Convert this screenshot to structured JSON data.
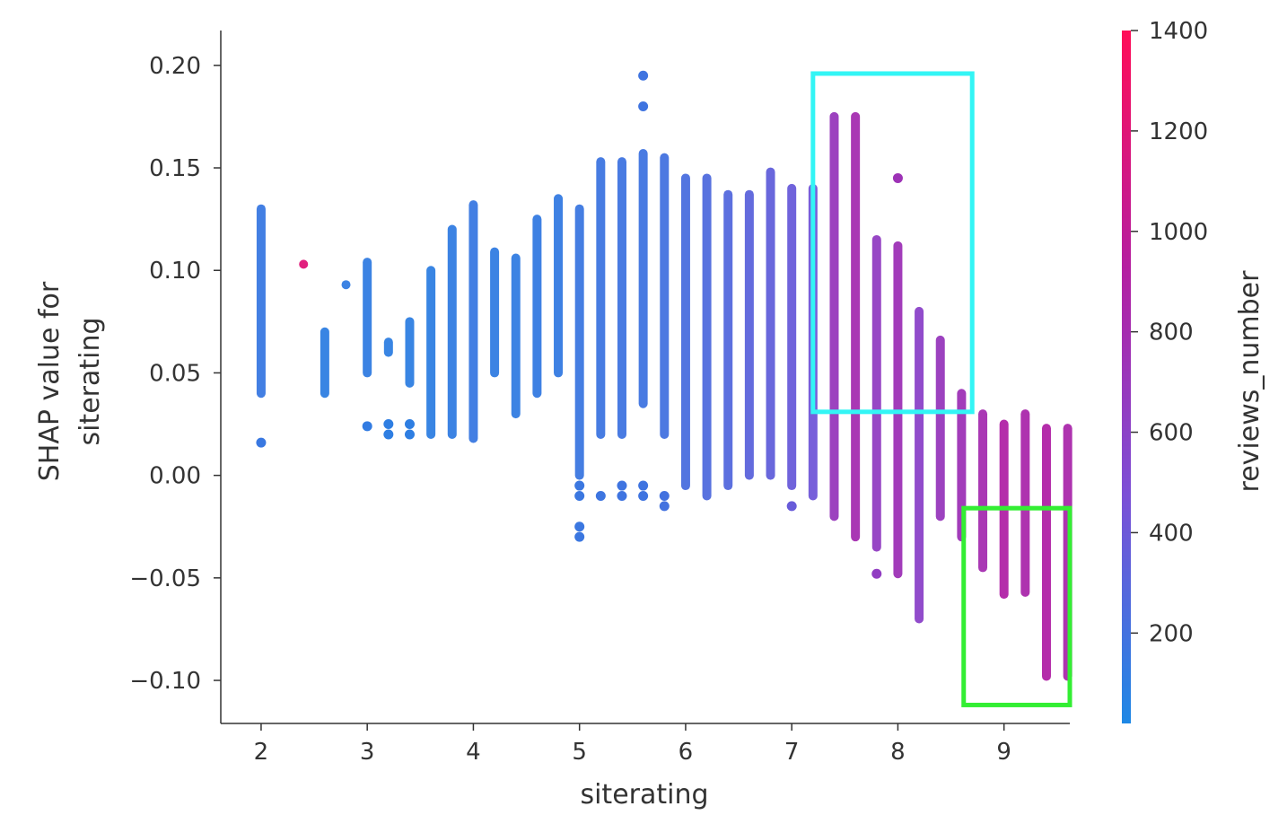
{
  "chart_data": {
    "type": "scatter",
    "title": "",
    "xlabel": "siterating",
    "ylabel_lines": [
      "SHAP value for",
      "siterating"
    ],
    "xlim": [
      1.62,
      9.62
    ],
    "ylim": [
      -0.121,
      0.217
    ],
    "x_ticks": [
      2,
      3,
      4,
      5,
      6,
      7,
      8,
      9
    ],
    "x_tick_labels": [
      "2",
      "3",
      "4",
      "5",
      "6",
      "7",
      "8",
      "9"
    ],
    "y_ticks": [
      0.2,
      0.15,
      0.1,
      0.05,
      0.0,
      -0.05,
      -0.1
    ],
    "y_tick_labels": [
      "0.20",
      "0.15",
      "0.10",
      "0.05",
      "0.00",
      "−0.05",
      "−0.10"
    ],
    "grid": false,
    "colorbar": {
      "label": "reviews_number",
      "range": [
        20,
        1400
      ],
      "ticks": [
        1400,
        1200,
        1000,
        800,
        600,
        400,
        200
      ],
      "tick_labels": [
        "1400",
        "1200",
        "1000",
        "800",
        "600",
        "400",
        "200"
      ],
      "colors": [
        "#1e88e5",
        "#7c4fd6",
        "#b51ea0",
        "#ff0d57"
      ]
    },
    "columns": [
      {
        "x": 2.0,
        "y_min": 0.04,
        "y_max": 0.13,
        "outliers": [
          0.016
        ],
        "reviews": 150
      },
      {
        "x": 2.4,
        "y_min": 0.103,
        "y_max": 0.103,
        "outliers": [],
        "reviews": 1200
      },
      {
        "x": 2.6,
        "y_min": 0.04,
        "y_max": 0.07,
        "outliers": [],
        "reviews": 100
      },
      {
        "x": 2.8,
        "y_min": 0.093,
        "y_max": 0.093,
        "outliers": [],
        "reviews": 120
      },
      {
        "x": 3.0,
        "y_min": 0.05,
        "y_max": 0.104,
        "outliers": [
          0.024
        ],
        "reviews": 120
      },
      {
        "x": 3.2,
        "y_min": 0.06,
        "y_max": 0.065,
        "outliers": [
          0.02,
          0.025
        ],
        "reviews": 100
      },
      {
        "x": 3.4,
        "y_min": 0.045,
        "y_max": 0.075,
        "outliers": [
          0.02,
          0.025
        ],
        "reviews": 100
      },
      {
        "x": 3.6,
        "y_min": 0.02,
        "y_max": 0.1,
        "outliers": [],
        "reviews": 100
      },
      {
        "x": 3.8,
        "y_min": 0.02,
        "y_max": 0.12,
        "outliers": [],
        "reviews": 120
      },
      {
        "x": 4.0,
        "y_min": 0.018,
        "y_max": 0.132,
        "outliers": [],
        "reviews": 150
      },
      {
        "x": 4.2,
        "y_min": 0.05,
        "y_max": 0.109,
        "outliers": [],
        "reviews": 120
      },
      {
        "x": 4.4,
        "y_min": 0.03,
        "y_max": 0.106,
        "outliers": [],
        "reviews": 120
      },
      {
        "x": 4.6,
        "y_min": 0.04,
        "y_max": 0.125,
        "outliers": [],
        "reviews": 130
      },
      {
        "x": 4.8,
        "y_min": 0.05,
        "y_max": 0.135,
        "outliers": [],
        "reviews": 130
      },
      {
        "x": 5.0,
        "y_min": 0.0,
        "y_max": 0.13,
        "outliers": [
          -0.025,
          -0.03,
          -0.01,
          -0.005
        ],
        "reviews": 160
      },
      {
        "x": 5.2,
        "y_min": 0.02,
        "y_max": 0.153,
        "outliers": [
          -0.01
        ],
        "reviews": 170
      },
      {
        "x": 5.4,
        "y_min": 0.02,
        "y_max": 0.153,
        "outliers": [
          -0.005,
          -0.01
        ],
        "reviews": 180
      },
      {
        "x": 5.6,
        "y_min": 0.035,
        "y_max": 0.157,
        "outliers": [
          0.195,
          0.18,
          -0.005,
          -0.01
        ],
        "reviews": 180
      },
      {
        "x": 5.8,
        "y_min": 0.02,
        "y_max": 0.155,
        "outliers": [
          -0.01,
          -0.015
        ],
        "reviews": 200
      },
      {
        "x": 6.0,
        "y_min": -0.005,
        "y_max": 0.145,
        "outliers": [],
        "reviews": 230
      },
      {
        "x": 6.2,
        "y_min": -0.01,
        "y_max": 0.145,
        "outliers": [],
        "reviews": 260
      },
      {
        "x": 6.4,
        "y_min": -0.005,
        "y_max": 0.137,
        "outliers": [],
        "reviews": 280
      },
      {
        "x": 6.6,
        "y_min": 0.0,
        "y_max": 0.137,
        "outliers": [],
        "reviews": 320
      },
      {
        "x": 6.8,
        "y_min": 0.0,
        "y_max": 0.148,
        "outliers": [],
        "reviews": 350
      },
      {
        "x": 7.0,
        "y_min": -0.005,
        "y_max": 0.14,
        "outliers": [
          -0.015
        ],
        "reviews": 380
      },
      {
        "x": 7.2,
        "y_min": -0.01,
        "y_max": 0.14,
        "outliers": [],
        "reviews": 420
      },
      {
        "x": 7.4,
        "y_min": -0.02,
        "y_max": 0.175,
        "outliers": [],
        "reviews": 700
      },
      {
        "x": 7.6,
        "y_min": -0.03,
        "y_max": 0.175,
        "outliers": [],
        "reviews": 800
      },
      {
        "x": 7.8,
        "y_min": -0.035,
        "y_max": 0.115,
        "outliers": [
          -0.048
        ],
        "reviews": 650
      },
      {
        "x": 8.0,
        "y_min": -0.048,
        "y_max": 0.112,
        "outliers": [
          0.145
        ],
        "reviews": 750
      },
      {
        "x": 8.2,
        "y_min": -0.07,
        "y_max": 0.08,
        "outliers": [],
        "reviews": 600
      },
      {
        "x": 8.4,
        "y_min": -0.02,
        "y_max": 0.066,
        "outliers": [],
        "reviews": 700
      },
      {
        "x": 8.6,
        "y_min": -0.03,
        "y_max": 0.04,
        "outliers": [],
        "reviews": 750
      },
      {
        "x": 8.8,
        "y_min": -0.045,
        "y_max": 0.03,
        "outliers": [],
        "reviews": 800
      },
      {
        "x": 9.0,
        "y_min": -0.058,
        "y_max": 0.025,
        "outliers": [],
        "reviews": 900
      },
      {
        "x": 9.2,
        "y_min": -0.057,
        "y_max": 0.03,
        "outliers": [],
        "reviews": 850
      },
      {
        "x": 9.4,
        "y_min": -0.098,
        "y_max": 0.023,
        "outliers": [],
        "reviews": 900
      },
      {
        "x": 9.6,
        "y_min": -0.098,
        "y_max": 0.023,
        "outliers": [],
        "reviews": 850
      }
    ],
    "highlight_boxes": [
      {
        "name": "cyan-highlight-box",
        "color": "#33f5f5",
        "x_range": [
          7.2,
          8.7
        ],
        "y_range": [
          0.031,
          0.196
        ]
      },
      {
        "name": "green-highlight-box",
        "color": "#33ee33",
        "x_range": [
          8.62,
          9.62
        ],
        "y_range": [
          -0.112,
          -0.016
        ]
      }
    ]
  }
}
